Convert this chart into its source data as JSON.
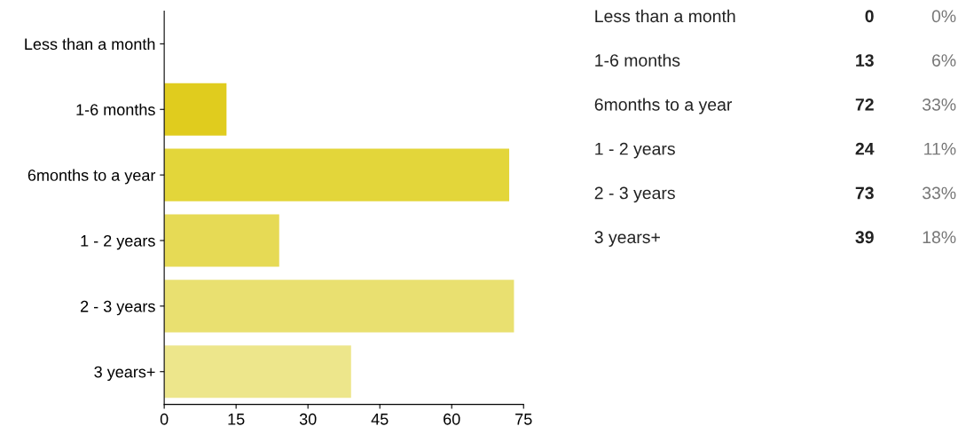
{
  "chart_data": {
    "type": "bar",
    "orientation": "horizontal",
    "categories": [
      "Less than a month",
      "1-6 months",
      "6months to a year",
      "1 - 2 years",
      "2 - 3 years",
      "3 years+"
    ],
    "values": [
      0,
      13,
      72,
      24,
      73,
      39
    ],
    "colors": [
      "#dcc400",
      "#e0cc1e",
      "#e3d63a",
      "#e6da55",
      "#e9e070",
      "#ede68b"
    ],
    "xlim": [
      0,
      75
    ],
    "xticks": [
      0,
      15,
      30,
      45,
      60,
      75
    ],
    "annotations": [
      "0",
      "0%",
      "13",
      "6%",
      "72",
      "33%",
      "24",
      "11%",
      "73",
      "33%",
      "39",
      "18%"
    ],
    "grid": false,
    "legend": false
  }
}
